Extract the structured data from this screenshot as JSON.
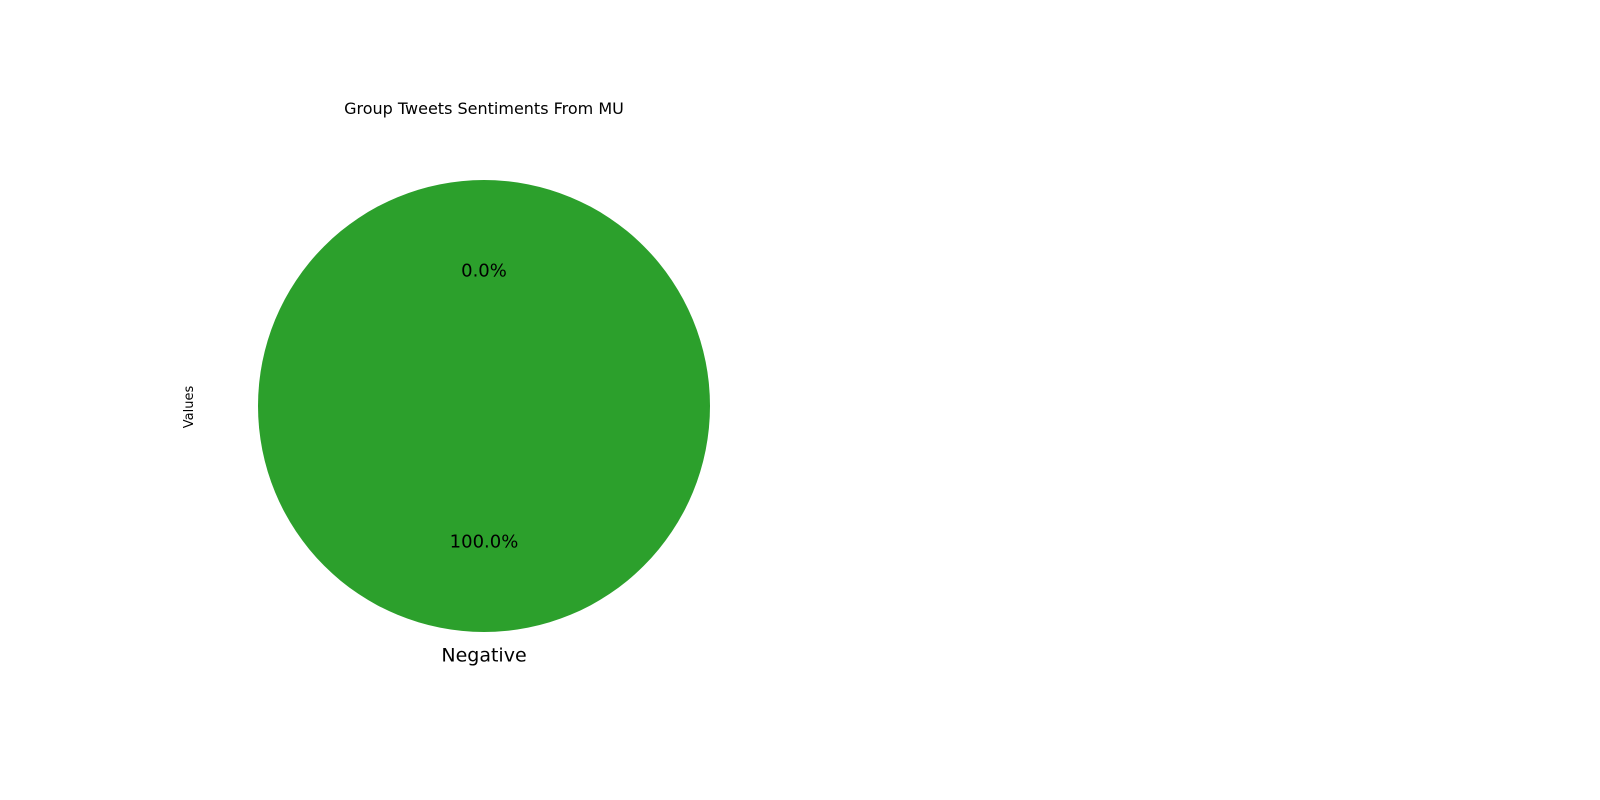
{
  "chart_data": {
    "type": "pie",
    "title": "Group Tweets Sentiments From MU",
    "ylabel": "Values",
    "categories": [
      "",
      "Negative"
    ],
    "values": [
      0,
      100
    ],
    "percent_labels": [
      "0.0%",
      "100.0%"
    ],
    "colors": [
      "#2ca02c",
      "#2ca02c"
    ],
    "legend": "none"
  }
}
